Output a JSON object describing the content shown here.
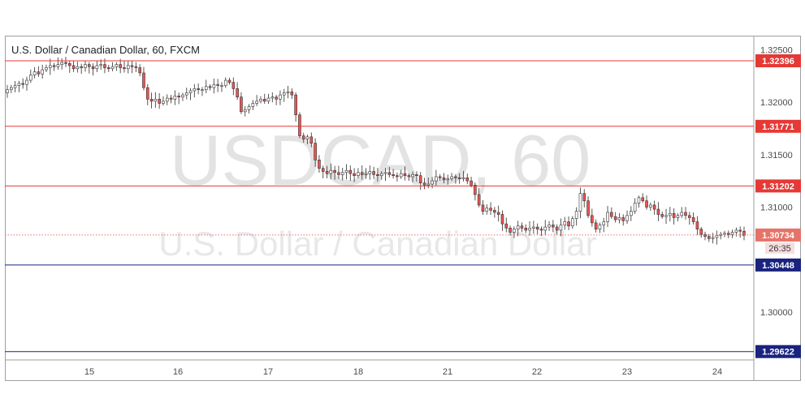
{
  "header": {
    "title": "U.S. Dollar / Canadian Dollar, 60, FXCM"
  },
  "watermark": {
    "symbol": "USDCAD, 60",
    "description": "U.S. Dollar / Canadian Dollar"
  },
  "colors": {
    "up_candle": "#26a69a",
    "down_candle": "#ef5350",
    "candle_body_up": "#ffffff",
    "resistance": "#e53935",
    "support": "#1a237e",
    "current": "#e57373"
  },
  "chart_data": {
    "type": "candlestick",
    "instrument": "USDCAD",
    "interval": "60",
    "source": "FXCM",
    "x_tick_labels": [
      "15",
      "16",
      "17",
      "18",
      "21",
      "22",
      "23",
      "24"
    ],
    "y_tick_labels": [
      "1.32500",
      "1.32000",
      "1.31500",
      "1.31000",
      "1.30000"
    ],
    "y_ticks": [
      1.325,
      1.32,
      1.315,
      1.31,
      1.3
    ],
    "ylim": [
      1.2955,
      1.3262
    ],
    "horizontal_levels": [
      {
        "value": 1.32396,
        "label": "1.32396",
        "kind": "resistance"
      },
      {
        "value": 1.31771,
        "label": "1.31771",
        "kind": "resistance"
      },
      {
        "value": 1.31202,
        "label": "1.31202",
        "kind": "resistance"
      },
      {
        "value": 1.30448,
        "label": "1.30448",
        "kind": "support"
      },
      {
        "value": 1.29622,
        "label": "1.29622",
        "kind": "support"
      }
    ],
    "current_price": {
      "value": 1.30734,
      "label": "1.30734",
      "timer": "26:35"
    },
    "close_path": [
      1.3212,
      1.3214,
      1.3216,
      1.3218,
      1.3217,
      1.3221,
      1.3226,
      1.3229,
      1.3227,
      1.3231,
      1.3233,
      1.3235,
      1.3234,
      1.3236,
      1.3238,
      1.3237,
      1.3235,
      1.3232,
      1.3234,
      1.3233,
      1.3236,
      1.3234,
      1.3232,
      1.3235,
      1.3236,
      1.3233,
      1.3232,
      1.3234,
      1.3236,
      1.3233,
      1.3232,
      1.3235,
      1.3234,
      1.3233,
      1.3228,
      1.3214,
      1.3203,
      1.3201,
      1.3203,
      1.3199,
      1.3201,
      1.3204,
      1.3203,
      1.3206,
      1.3205,
      1.3207,
      1.3209,
      1.3211,
      1.3213,
      1.3212,
      1.3212,
      1.3215,
      1.3214,
      1.3217,
      1.3216,
      1.3216,
      1.3221,
      1.3219,
      1.3213,
      1.3205,
      1.3191,
      1.3193,
      1.3196,
      1.3199,
      1.3201,
      1.3203,
      1.3201,
      1.3204,
      1.3205,
      1.3203,
      1.3207,
      1.3209,
      1.321,
      1.3207,
      1.3188,
      1.3168,
      1.3165,
      1.3167,
      1.3161,
      1.3145,
      1.3137,
      1.3134,
      1.3132,
      1.3135,
      1.3133,
      1.3131,
      1.3133,
      1.3135,
      1.3132,
      1.313,
      1.3133,
      1.3131,
      1.3132,
      1.3134,
      1.3131,
      1.313,
      1.3132,
      1.3133,
      1.3131,
      1.313,
      1.3129,
      1.3132,
      1.313,
      1.3129,
      1.3131,
      1.313,
      1.3123,
      1.3121,
      1.3122,
      1.3125,
      1.3129,
      1.3128,
      1.3126,
      1.3127,
      1.3129,
      1.3128,
      1.3127,
      1.3128,
      1.3125,
      1.3121,
      1.3112,
      1.3102,
      1.3096,
      1.3099,
      1.3097,
      1.3095,
      1.3093,
      1.3084,
      1.308,
      1.3076,
      1.3079,
      1.3082,
      1.308,
      1.3078,
      1.308,
      1.3081,
      1.3079,
      1.3078,
      1.3081,
      1.3083,
      1.3081,
      1.3078,
      1.3083,
      1.3086,
      1.3082,
      1.3089,
      1.3096,
      1.3113,
      1.3106,
      1.3092,
      1.3085,
      1.3079,
      1.3083,
      1.3086,
      1.3095,
      1.3091,
      1.3088,
      1.309,
      1.3087,
      1.3092,
      1.3096,
      1.3104,
      1.3109,
      1.3106,
      1.31,
      1.3102,
      1.3098,
      1.3093,
      1.3091,
      1.3092,
      1.3094,
      1.309,
      1.3092,
      1.3095,
      1.3092,
      1.309,
      1.3086,
      1.3079,
      1.3074,
      1.3072,
      1.307,
      1.3071,
      1.3073,
      1.3074,
      1.3075,
      1.3074,
      1.3076,
      1.3078,
      1.3077,
      1.3073
    ]
  }
}
